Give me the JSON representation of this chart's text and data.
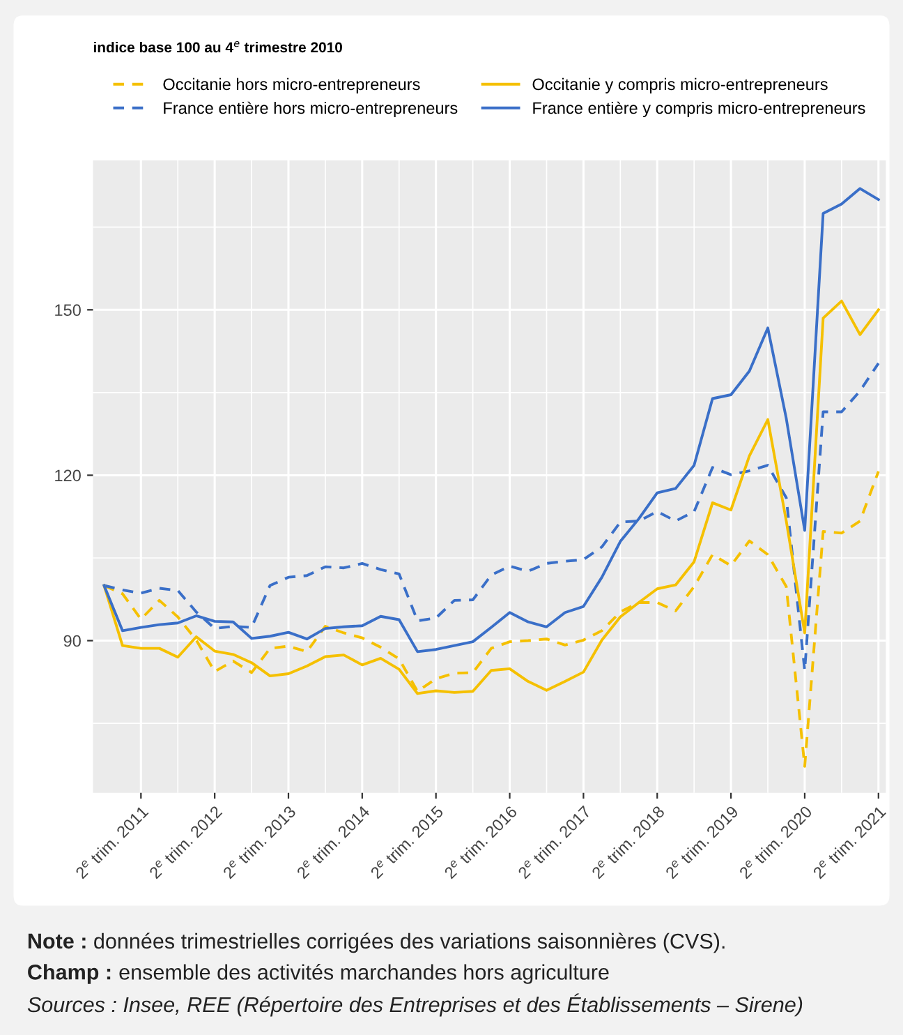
{
  "chart_data": {
    "type": "line",
    "categories": [
      null,
      null,
      "2$^{e}$ trim. 2011",
      null,
      null,
      null,
      "2$^{e}$ trim. 2012",
      null,
      null,
      null,
      "2$^{e}$ trim. 2013",
      null,
      null,
      null,
      "2$^{e}$ trim. 2014",
      null,
      null,
      null,
      "2$^{e}$ trim. 2015",
      null,
      null,
      null,
      "2$^{e}$ trim. 2016",
      null,
      null,
      null,
      "2$^{e}$ trim. 2017",
      null,
      null,
      null,
      "2$^{e}$ trim. 2018",
      null,
      null,
      null,
      "2$^{e}$ trim. 2019",
      null,
      null,
      null,
      "2$^{e}$ trim. 2020",
      null,
      null,
      null,
      "2$^{e}$ trim. 2021"
    ],
    "series": [
      {
        "name": "Occitanie hors micro-entrepreneurs",
        "color": "#f5c000",
        "line_style": "dashed",
        "values": [
          100,
          98.5,
          93.9,
          97.3,
          94.3,
          90.1,
          84.4,
          86.3,
          84.2,
          88.6,
          89.0,
          88.0,
          92.6,
          91.4,
          90.5,
          88.8,
          86.7,
          80.8,
          83.1,
          84.1,
          84.2,
          88.6,
          89.8,
          90.0,
          90.3,
          89.2,
          90.1,
          91.8,
          95.2,
          96.9,
          96.9,
          95.4,
          99.8,
          105.6,
          103.6,
          108.1,
          105.6,
          99.8,
          67.2,
          109.8,
          109.5,
          111.7,
          120.7
        ]
      },
      {
        "name": "France entière hors micro-entrepreneurs",
        "color": "#3a6fc8",
        "line_style": "dashed",
        "values": [
          100,
          99.2,
          98.6,
          99.5,
          99.1,
          95.2,
          92.2,
          92.6,
          92.4,
          100.0,
          101.5,
          101.8,
          103.4,
          103.2,
          104.0,
          102.9,
          102.1,
          93.6,
          94.1,
          97.3,
          97.4,
          101.9,
          103.5,
          102.6,
          104.0,
          104.4,
          104.7,
          107.0,
          111.5,
          111.7,
          113.4,
          111.7,
          113.4,
          121.4,
          120.1,
          120.8,
          121.8,
          115.9,
          84.6,
          131.5,
          131.5,
          135.3,
          140.3
        ]
      },
      {
        "name": "Occitanie y compris micro-entrepreneurs",
        "color": "#f5c000",
        "line_style": "solid",
        "values": [
          100,
          89.1,
          88.6,
          88.6,
          87.0,
          90.7,
          88.1,
          87.5,
          86.0,
          83.6,
          84.0,
          85.4,
          87.1,
          87.4,
          85.6,
          86.8,
          84.8,
          80.4,
          80.9,
          80.6,
          80.8,
          84.6,
          84.9,
          82.6,
          81.0,
          82.6,
          84.3,
          90.1,
          94.3,
          96.9,
          99.4,
          100.1,
          104.3,
          115.0,
          113.7,
          123.5,
          130.1,
          111.7,
          91.4,
          148.5,
          151.6,
          145.5,
          150.0
        ]
      },
      {
        "name": "France entière y compris micro-entrepreneurs",
        "color": "#3a6fc8",
        "line_style": "solid",
        "values": [
          100,
          91.8,
          92.4,
          92.9,
          93.2,
          94.5,
          93.5,
          93.4,
          90.4,
          90.8,
          91.5,
          90.3,
          92.2,
          92.5,
          92.7,
          94.4,
          93.8,
          88.0,
          88.4,
          89.1,
          89.8,
          92.4,
          95.1,
          93.4,
          92.5,
          95.1,
          96.2,
          101.5,
          108.0,
          112.1,
          116.8,
          117.6,
          121.8,
          133.9,
          134.6,
          138.9,
          146.7,
          130.3,
          110.0,
          167.5,
          169.2,
          172.0,
          170.0
        ]
      }
    ],
    "ylim": [
      62.4,
      177.1
    ],
    "yticks": [
      {
        "value": 75,
        "label": null
      },
      90,
      {
        "value": 105,
        "label": null
      },
      120,
      {
        "value": 135,
        "label": null
      },
      150,
      {
        "value": 165,
        "label": null
      }
    ],
    "grid": true,
    "legend": "top",
    "annotations": [
      "indice base 100 au 4$^{e}$ trimestre 2010",
      "Note : données trimestrielles corrigées des variations saisonnières (CVS).",
      "Champ : ensemble des activités marchandes hors agriculture",
      "Sources : Insee, REE (Répertoire des Entreprises et des Établissements – Sirene)"
    ]
  }
}
